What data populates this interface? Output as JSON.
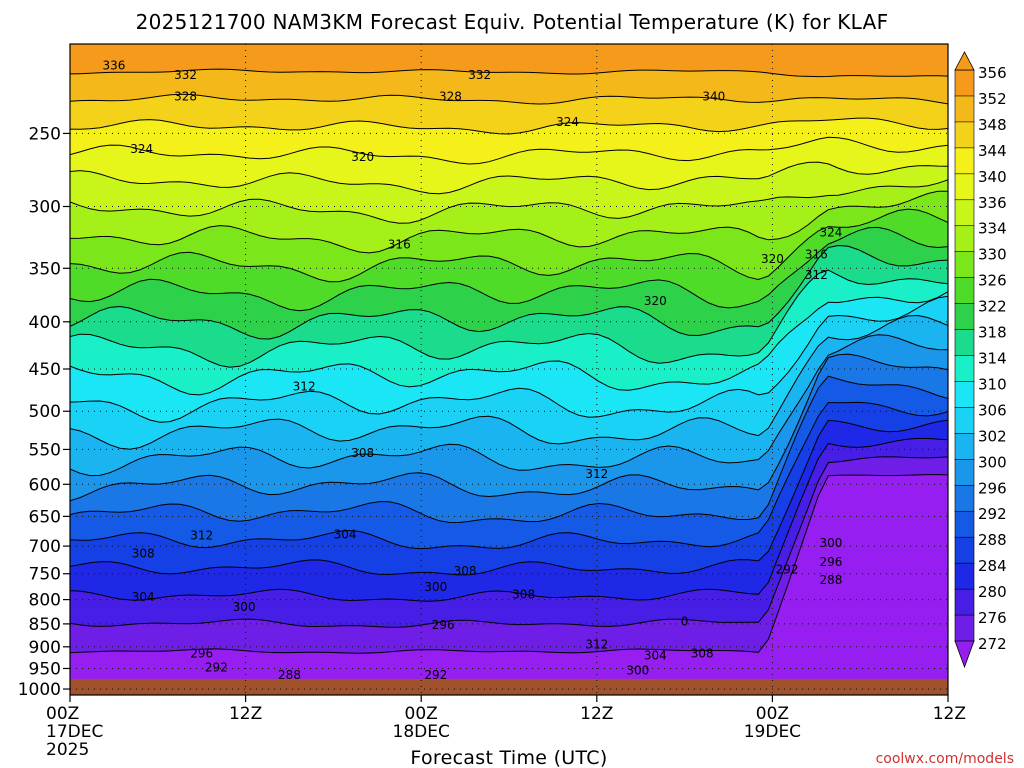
{
  "chart_data": {
    "type": "heatmap",
    "title": "2025121700 NAM3KM Forecast Equiv. Potential Temperature (K) for KLAF",
    "xlabel": "Forecast Time (UTC)",
    "ylabel": "",
    "watermark": "coolwx.com/models",
    "x_ticks": [
      {
        "hour": 0,
        "lines": [
          "00Z",
          "17DEC",
          "2025"
        ]
      },
      {
        "hour": 12,
        "lines": [
          "12Z"
        ]
      },
      {
        "hour": 24,
        "lines": [
          "00Z",
          "18DEC"
        ]
      },
      {
        "hour": 36,
        "lines": [
          "12Z"
        ]
      },
      {
        "hour": 48,
        "lines": [
          "00Z",
          "19DEC"
        ]
      },
      {
        "hour": 60,
        "lines": [
          "12Z"
        ]
      }
    ],
    "xlim_hours": [
      0,
      60
    ],
    "y_axis": "pressure (hPa), log scale, inverted",
    "y_ticks": [
      250,
      300,
      350,
      400,
      450,
      500,
      550,
      600,
      650,
      700,
      750,
      800,
      850,
      900,
      950,
      1000
    ],
    "ylim": [
      1015,
      200
    ],
    "surface_pressure": 975,
    "grid": "dotted",
    "colorbar": {
      "placement": "right",
      "labels": [
        356,
        352,
        348,
        344,
        340,
        336,
        334,
        330,
        326,
        322,
        318,
        314,
        310,
        306,
        302,
        300,
        296,
        292,
        288,
        284,
        280,
        276,
        272
      ],
      "colors": [
        "#f59a1a",
        "#f5b81a",
        "#f5d21a",
        "#f5ef1a",
        "#e6f51a",
        "#c8f51a",
        "#a6f01a",
        "#7be61a",
        "#4fdc28",
        "#2ed24a",
        "#1adc8c",
        "#1af0c8",
        "#1ae6f5",
        "#1ad2f5",
        "#1ab4f0",
        "#1a96eb",
        "#1a78e6",
        "#145ae6",
        "#1440e6",
        "#1e28e6",
        "#461ee6",
        "#6e1ee6",
        "#961ef0"
      ]
    },
    "contour_labels": [
      {
        "value": "336",
        "hour": 3.0,
        "p": 211
      },
      {
        "value": "332",
        "hour": 7.9,
        "p": 216
      },
      {
        "value": "328",
        "hour": 7.9,
        "p": 228
      },
      {
        "value": "324",
        "hour": 4.9,
        "p": 260
      },
      {
        "value": "320",
        "hour": 20.0,
        "p": 265
      },
      {
        "value": "316",
        "hour": 22.5,
        "p": 330
      },
      {
        "value": "312",
        "hour": 16.0,
        "p": 470
      },
      {
        "value": "308",
        "hour": 20.0,
        "p": 555
      },
      {
        "value": "304",
        "hour": 18.8,
        "p": 680
      },
      {
        "value": "312",
        "hour": 9.0,
        "p": 682
      },
      {
        "value": "308",
        "hour": 5.0,
        "p": 713
      },
      {
        "value": "304",
        "hour": 5.0,
        "p": 795
      },
      {
        "value": "300",
        "hour": 11.9,
        "p": 815
      },
      {
        "value": "296",
        "hour": 9.0,
        "p": 915
      },
      {
        "value": "292",
        "hour": 10.0,
        "p": 948
      },
      {
        "value": "288",
        "hour": 15.0,
        "p": 965
      },
      {
        "value": "300",
        "hour": 25.0,
        "p": 775
      },
      {
        "value": "308",
        "hour": 27.0,
        "p": 745
      },
      {
        "value": "296",
        "hour": 25.5,
        "p": 852
      },
      {
        "value": "292",
        "hour": 25.0,
        "p": 965
      },
      {
        "value": "308",
        "hour": 31.0,
        "p": 790
      },
      {
        "value": "312",
        "hour": 36.0,
        "p": 585
      },
      {
        "value": "312",
        "hour": 36.0,
        "p": 895
      },
      {
        "value": "304",
        "hour": 40.0,
        "p": 920
      },
      {
        "value": "300",
        "hour": 38.8,
        "p": 955
      },
      {
        "value": "308",
        "hour": 43.2,
        "p": 915
      },
      {
        "value": "0",
        "hour": 42.0,
        "p": 845
      },
      {
        "value": "320",
        "hour": 40.0,
        "p": 380
      },
      {
        "value": "324",
        "hour": 34.0,
        "p": 243
      },
      {
        "value": "332",
        "hour": 28.0,
        "p": 216
      },
      {
        "value": "328",
        "hour": 26.0,
        "p": 228
      },
      {
        "value": "340",
        "hour": 44.0,
        "p": 228
      },
      {
        "value": "324",
        "hour": 52.0,
        "p": 320
      },
      {
        "value": "320",
        "hour": 48.0,
        "p": 342
      },
      {
        "value": "316",
        "hour": 51.0,
        "p": 338
      },
      {
        "value": "312",
        "hour": 51.0,
        "p": 356
      },
      {
        "value": "300",
        "hour": 52.0,
        "p": 695
      },
      {
        "value": "296",
        "hour": 52.0,
        "p": 728
      },
      {
        "value": "292",
        "hour": 49.0,
        "p": 742
      },
      {
        "value": "288",
        "hour": 52.0,
        "p": 762
      }
    ]
  }
}
